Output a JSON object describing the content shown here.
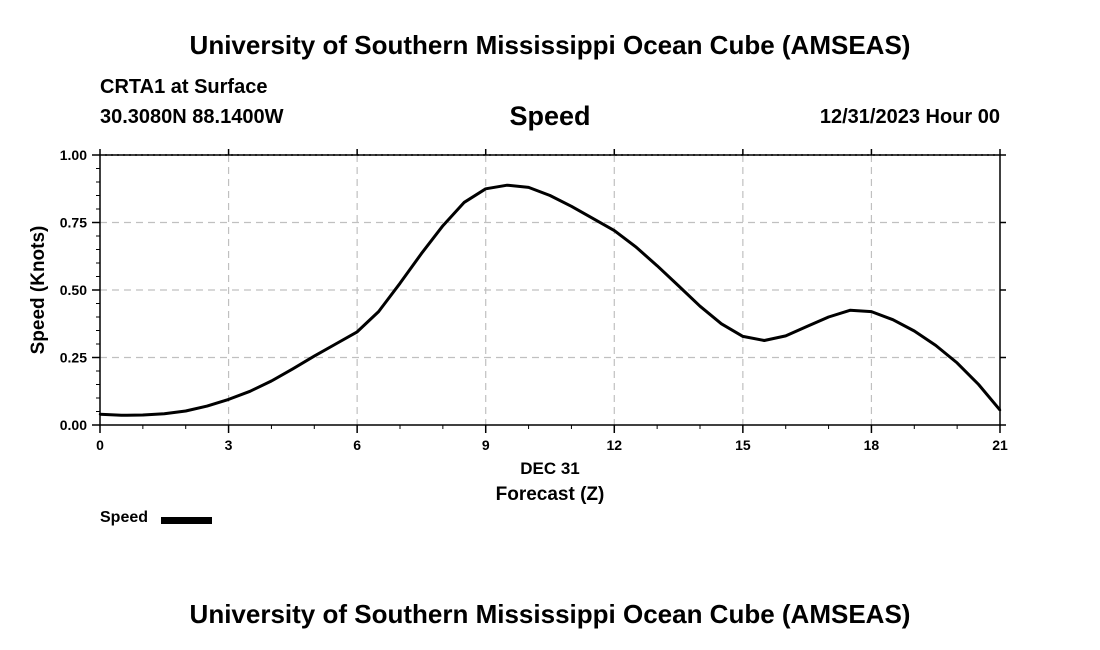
{
  "header": {
    "title": "University of Southern Mississippi Ocean Cube (AMSEAS)",
    "station": "CRTA1 at Surface",
    "coords": "30.3080N  88.1400W",
    "variable": "Speed",
    "datetime": "12/31/2023 Hour 00"
  },
  "footer": {
    "title": "University of Southern Mississippi Ocean Cube (AMSEAS)"
  },
  "legend": {
    "label": "Speed"
  },
  "colors": {
    "line": "#000000",
    "grid": "#c0c0c0",
    "background": "#ffffff"
  },
  "chart_data": {
    "type": "line",
    "title": "Speed",
    "xlabel": "Forecast (Z)",
    "xsublabel": "DEC 31",
    "ylabel": "Speed (Knots)",
    "xlim": [
      0,
      21
    ],
    "ylim": [
      0,
      1
    ],
    "xticks": [
      0,
      3,
      6,
      9,
      12,
      15,
      18,
      21
    ],
    "xtick_labels": [
      "0",
      "3",
      "6",
      "9",
      "12",
      "15",
      "18",
      "21"
    ],
    "yticks": [
      0,
      0.25,
      0.5,
      0.75,
      1.0
    ],
    "ytick_labels": [
      "0.00",
      "0.25",
      "0.50",
      "0.75",
      "1.00"
    ],
    "grid": true,
    "series": [
      {
        "name": "Speed",
        "x": [
          0,
          0.5,
          1,
          1.5,
          2,
          2.5,
          3,
          3.5,
          4,
          4.5,
          5,
          5.5,
          6,
          6.5,
          7,
          7.5,
          8,
          8.5,
          9,
          9.5,
          10,
          10.5,
          11,
          11.5,
          12,
          12.5,
          13,
          13.5,
          14,
          14.5,
          15,
          15.5,
          16,
          16.5,
          17,
          17.5,
          18,
          18.5,
          19,
          19.5,
          20,
          20.5,
          21
        ],
        "values": [
          0.04,
          0.036,
          0.037,
          0.042,
          0.052,
          0.07,
          0.095,
          0.125,
          0.163,
          0.208,
          0.255,
          0.3,
          0.345,
          0.42,
          0.525,
          0.635,
          0.738,
          0.825,
          0.875,
          0.888,
          0.88,
          0.85,
          0.81,
          0.765,
          0.72,
          0.66,
          0.59,
          0.515,
          0.44,
          0.375,
          0.328,
          0.313,
          0.33,
          0.365,
          0.4,
          0.425,
          0.42,
          0.39,
          0.348,
          0.295,
          0.23,
          0.15,
          0.055
        ]
      }
    ]
  }
}
